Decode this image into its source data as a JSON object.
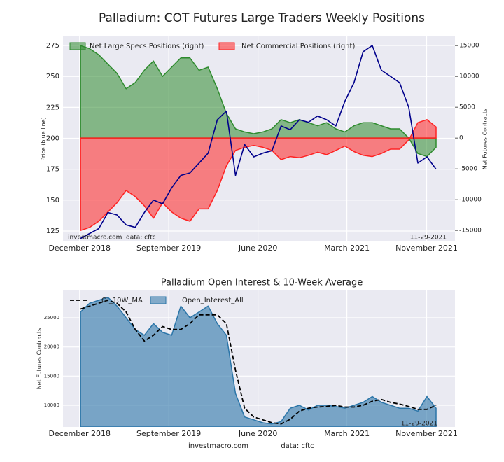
{
  "chart_data": [
    {
      "type": "area",
      "title": "Palladium: COT Futures Large Traders Weekly Positions",
      "y_label": "Price (blue line)",
      "y2_label": "Net Futures Contracts",
      "x": [
        "2018-12-04",
        "2019-01-01",
        "2019-01-29",
        "2019-02-26",
        "2019-03-26",
        "2019-04-23",
        "2019-05-21",
        "2019-06-18",
        "2019-07-16",
        "2019-08-13",
        "2019-09-10",
        "2019-10-08",
        "2019-11-05",
        "2019-12-03",
        "2019-12-31",
        "2020-01-28",
        "2020-02-25",
        "2020-03-24",
        "2020-04-21",
        "2020-05-19",
        "2020-06-16",
        "2020-07-14",
        "2020-08-11",
        "2020-09-08",
        "2020-10-06",
        "2020-11-03",
        "2020-12-01",
        "2020-12-29",
        "2021-01-26",
        "2021-02-23",
        "2021-03-23",
        "2021-04-20",
        "2021-05-18",
        "2021-06-15",
        "2021-07-13",
        "2021-08-10",
        "2021-09-07",
        "2021-10-05",
        "2021-11-02",
        "2021-11-30"
      ],
      "series": [
        {
          "color": "#00008b",
          "values": [
            119,
            123,
            127,
            140,
            138,
            130,
            128,
            140,
            150,
            147,
            160,
            170,
            172,
            180,
            188,
            215,
            222,
            170,
            195,
            185,
            188,
            190,
            210,
            207,
            215,
            213,
            218,
            215,
            210,
            230,
            245,
            270,
            275,
            255,
            250,
            245,
            225,
            180,
            185,
            175
          ]
        },
        {
          "name": "Net Large Specs Positions (right)",
          "color": "#2e8b2e",
          "fill": true,
          "axis": "y2",
          "values": [
            15000,
            14500,
            13500,
            12000,
            10500,
            8000,
            9000,
            11000,
            12500,
            10000,
            11500,
            13000,
            13000,
            11000,
            11500,
            8000,
            4000,
            1500,
            1000,
            700,
            1000,
            1500,
            3000,
            2500,
            3000,
            2500,
            2000,
            2500,
            1500,
            1000,
            2000,
            2500,
            2500,
            2000,
            1500,
            1500,
            0,
            -2500,
            -3000,
            -1500
          ]
        },
        {
          "name": "Net Commercial Positions (right)",
          "color": "#ff2222",
          "fill": true,
          "axis": "y2",
          "values": [
            -15000,
            -14500,
            -13500,
            -12000,
            -10500,
            -8500,
            -9500,
            -11000,
            -13000,
            -10500,
            -12000,
            -13000,
            -13500,
            -11500,
            -11500,
            -8500,
            -4500,
            -2000,
            -1500,
            -1200,
            -1500,
            -2000,
            -3500,
            -3000,
            -3200,
            -2800,
            -2300,
            -2700,
            -2000,
            -1300,
            -2200,
            -2800,
            -3000,
            -2500,
            -1800,
            -1800,
            -300,
            2500,
            3000,
            1800
          ]
        }
      ],
      "xlim": [
        "2018-10-11",
        "2022-01-27"
      ],
      "xticks": [
        {
          "value": "2018-12-01",
          "label": "December 2018"
        },
        {
          "value": "2019-09-01",
          "label": "September 2019"
        },
        {
          "value": "2020-06-01",
          "label": "June 2020"
        },
        {
          "value": "2021-03-01",
          "label": "March 2021"
        },
        {
          "value": "2021-11-01",
          "label": "November 2021"
        }
      ],
      "ylim": [
        116.5,
        282.4
      ],
      "yticks": [
        125,
        150,
        175,
        200,
        225,
        250,
        275
      ],
      "y2lim": [
        -16800,
        16500
      ],
      "y2ticks": [
        -15000,
        -10000,
        -5000,
        0,
        5000,
        10000,
        15000
      ],
      "grid": true,
      "legend": "upper left",
      "annotations": [
        "investmacro.com",
        "data: cftc",
        "11-29-2021"
      ]
    },
    {
      "type": "area",
      "title": "Palladium Open Interest & 10-Week Average",
      "y_label": "Net Futures Contracts",
      "x": [
        "2018-12-04",
        "2019-01-01",
        "2019-01-29",
        "2019-02-26",
        "2019-03-26",
        "2019-04-23",
        "2019-05-21",
        "2019-06-18",
        "2019-07-16",
        "2019-08-13",
        "2019-09-10",
        "2019-10-08",
        "2019-11-05",
        "2019-12-03",
        "2019-12-31",
        "2020-01-28",
        "2020-02-25",
        "2020-03-24",
        "2020-04-21",
        "2020-05-19",
        "2020-06-16",
        "2020-07-14",
        "2020-08-11",
        "2020-09-08",
        "2020-10-06",
        "2020-11-03",
        "2020-12-01",
        "2020-12-29",
        "2021-01-26",
        "2021-02-23",
        "2021-03-23",
        "2021-04-20",
        "2021-05-18",
        "2021-06-15",
        "2021-07-13",
        "2021-08-10",
        "2021-09-07",
        "2021-10-05",
        "2021-11-02",
        "2021-11-30"
      ],
      "series": [
        {
          "name": "OI_10W_MA",
          "color": "#000000",
          "dashed": true,
          "values": [
            26500,
            27000,
            27500,
            28000,
            27500,
            26000,
            23000,
            21000,
            22000,
            23500,
            23000,
            23000,
            24000,
            25500,
            25500,
            25500,
            24000,
            16000,
            9500,
            8000,
            7500,
            7000,
            6800,
            7600,
            9000,
            9500,
            9700,
            9800,
            10000,
            9700,
            9700,
            10000,
            10700,
            11000,
            10500,
            10200,
            9800,
            9300,
            9300,
            10000
          ]
        },
        {
          "name": "Open_Interest_All",
          "color": "#2b75a8",
          "fill": true,
          "values": [
            26000,
            27500,
            28000,
            28500,
            27000,
            25000,
            23000,
            22000,
            24000,
            22500,
            22000,
            27000,
            25000,
            26000,
            27000,
            24000,
            22000,
            12000,
            8000,
            7500,
            7000,
            6800,
            7200,
            9500,
            10000,
            9200,
            10000,
            10000,
            9800,
            9500,
            10000,
            10500,
            11500,
            10500,
            10000,
            9500,
            9500,
            9000,
            11500,
            9500
          ]
        }
      ],
      "xlim": [
        "2018-10-11",
        "2022-01-27"
      ],
      "xticks": [
        {
          "value": "2018-12-01",
          "label": "December 2018"
        },
        {
          "value": "2019-09-01",
          "label": "September 2019"
        },
        {
          "value": "2020-06-01",
          "label": "June 2020"
        },
        {
          "value": "2021-03-01",
          "label": "March 2021"
        },
        {
          "value": "2021-11-01",
          "label": "November 2021"
        }
      ],
      "ylim": [
        6280,
        29680
      ],
      "yticks": [
        10000,
        15000,
        20000,
        25000
      ],
      "grid": true,
      "legend": "upper left",
      "annotations": [
        "11-29-2021",
        "investmacro.com",
        "data: cftc"
      ]
    }
  ]
}
